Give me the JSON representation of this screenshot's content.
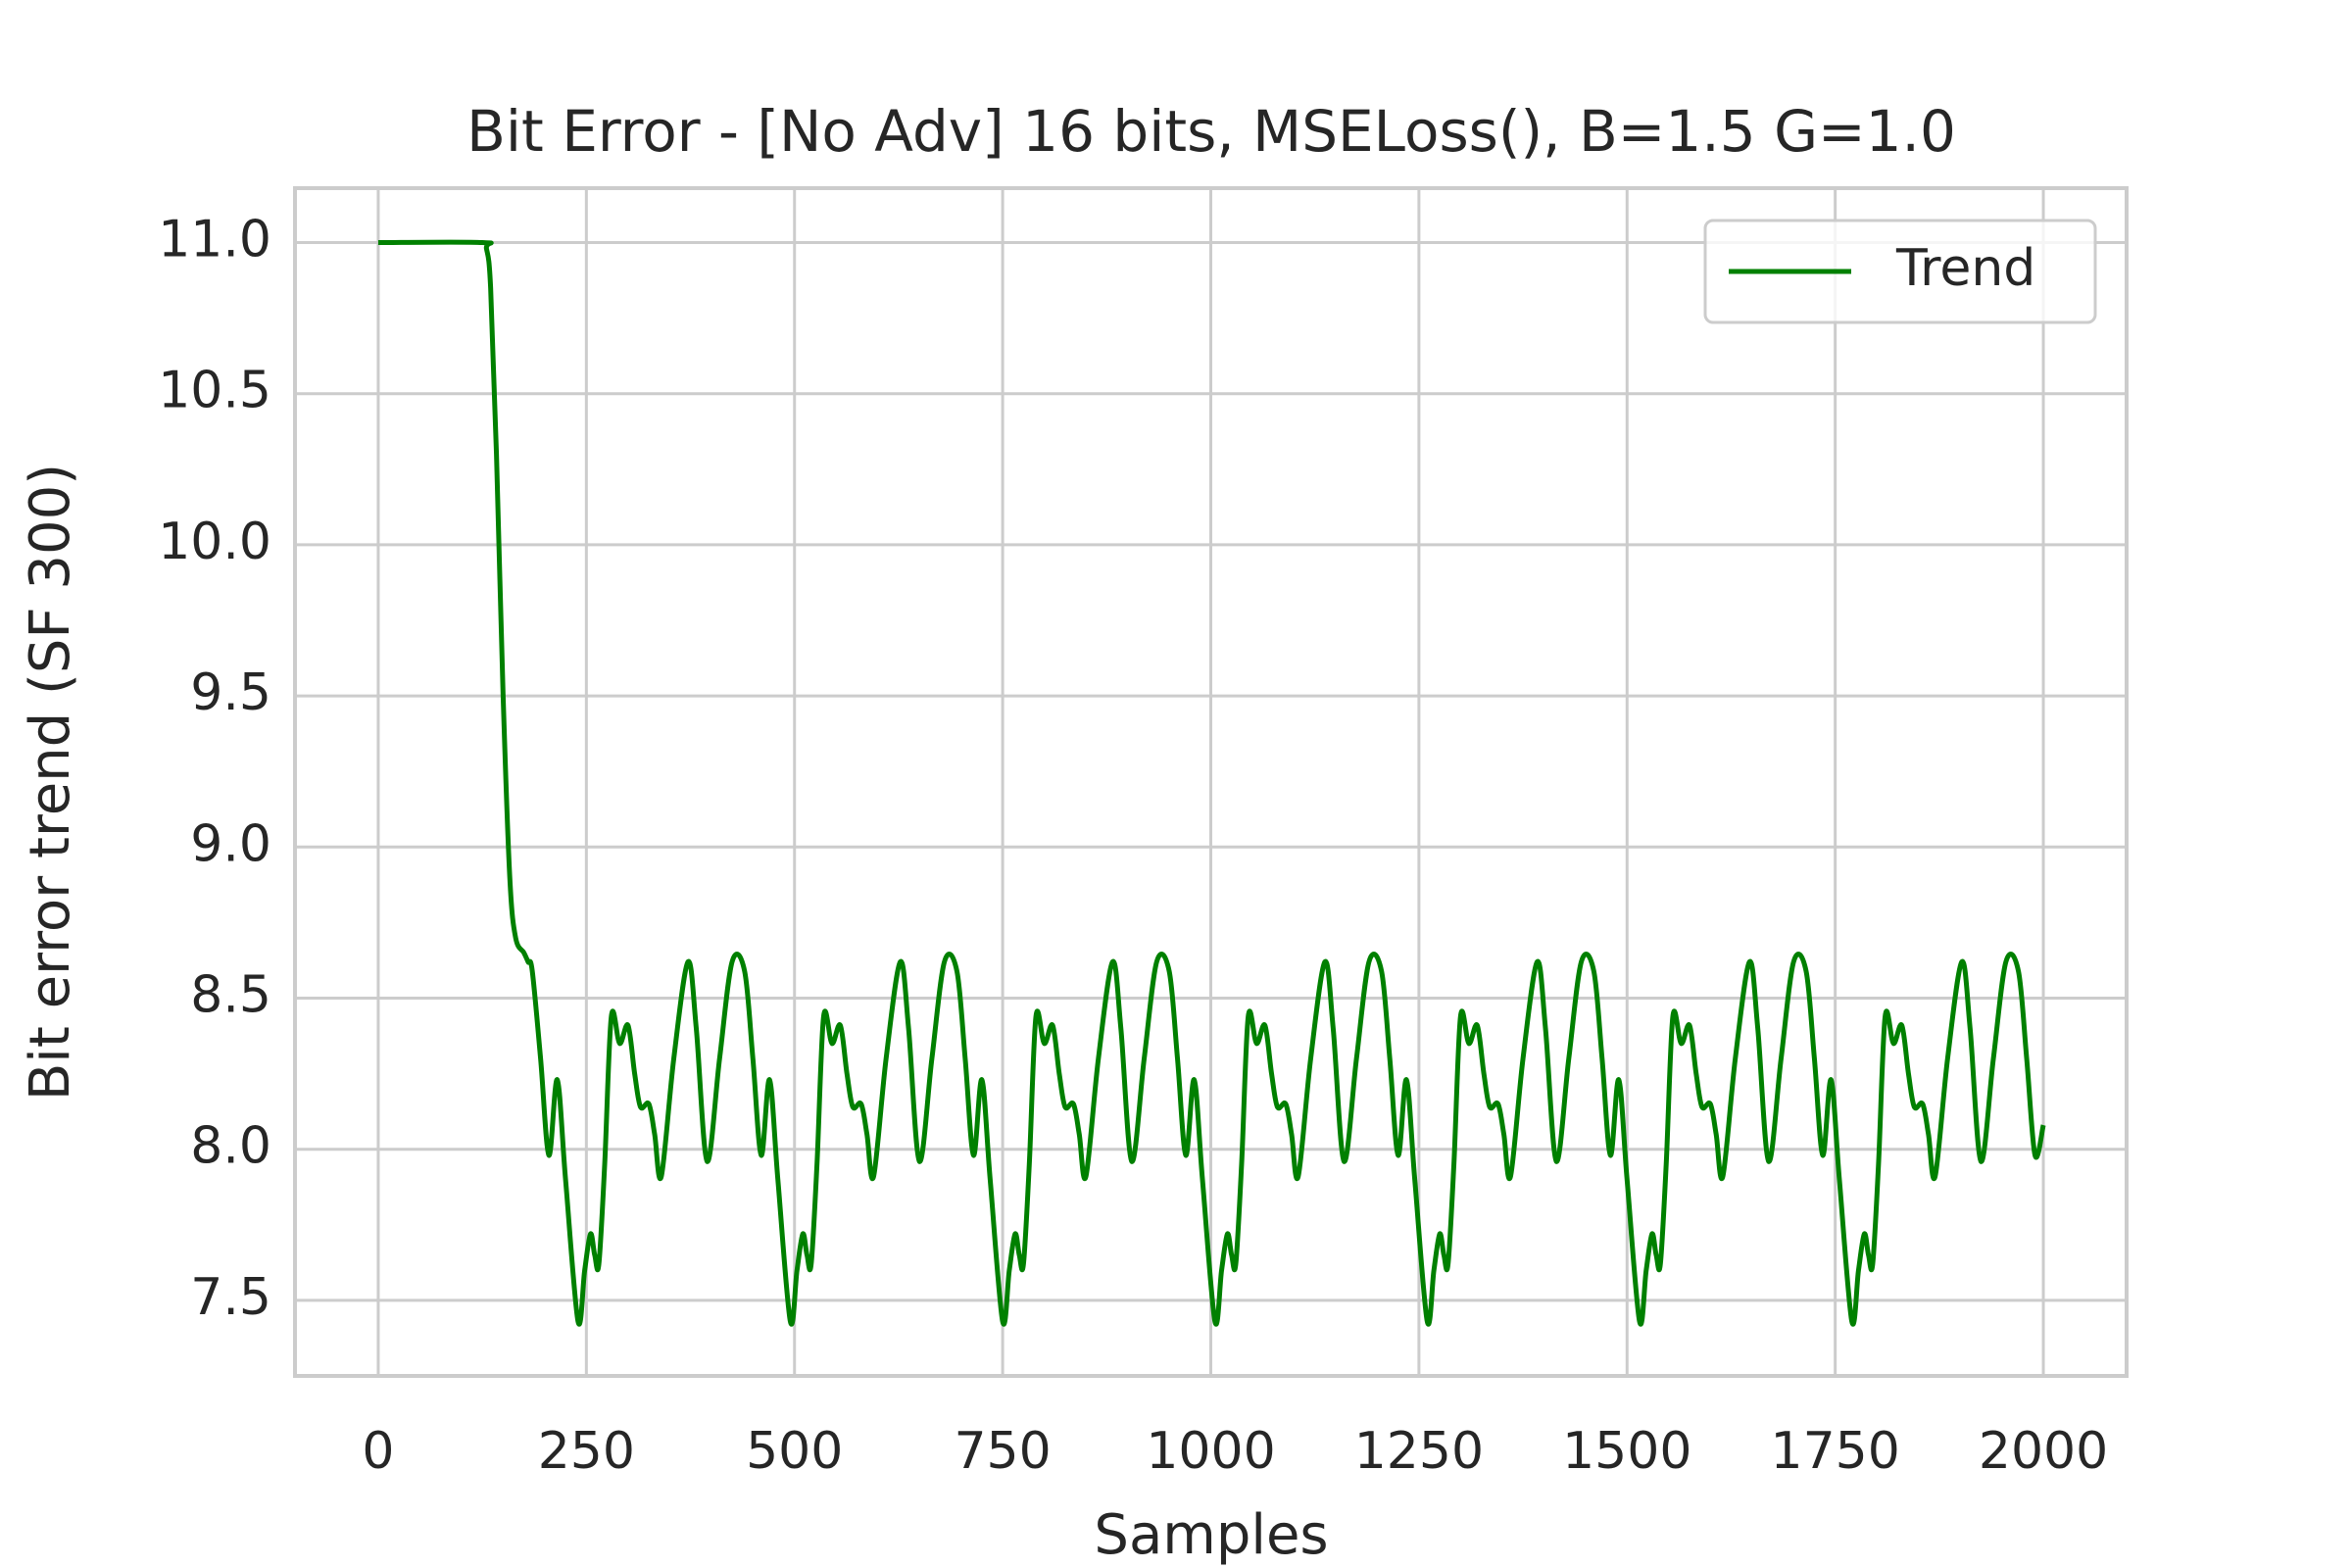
{
  "chart_data": {
    "type": "line",
    "title": "Bit Error - [No Adv] 16 bits, MSELoss(), B=1.5 G=1.0",
    "x_label": "Samples",
    "y_label": "Bit error trend (SF 300)",
    "xlim": [
      -100,
      2100
    ],
    "ylim": [
      7.25,
      11.18
    ],
    "xticks": [
      0,
      250,
      500,
      750,
      1000,
      1250,
      1500,
      1750,
      2000
    ],
    "yticks": [
      {
        "value": 7.5,
        "label": "7.5"
      },
      8.5,
      {
        "value": 8.0,
        "label": "8.0"
      },
      9.5,
      {
        "value": 9.0,
        "label": "9.0"
      },
      10.5,
      {
        "value": 10.0,
        "label": "10.0"
      },
      {
        "value": 11.0,
        "label": "11.0"
      }
    ],
    "grid": true,
    "legend_position": "upper right",
    "x": [
      0,
      125,
      130,
      135,
      142,
      150,
      158,
      165,
      175,
      180,
      185,
      195,
      205,
      215,
      225,
      240,
      248,
      255,
      260,
      265,
      272,
      280,
      290,
      300,
      308,
      315,
      325,
      332,
      340,
      355,
      372,
      382,
      395,
      410,
      425,
      440,
      450,
      460,
      470,
      480,
      495,
      503,
      510,
      515,
      520,
      527,
      535,
      545,
      555,
      563,
      570,
      580,
      587,
      595,
      610,
      627,
      637,
      650,
      665,
      680,
      695,
      705,
      715,
      725,
      735,
      750,
      758,
      765,
      770,
      775,
      782,
      790,
      800,
      810,
      818,
      825,
      835,
      842,
      850,
      865,
      882,
      892,
      905,
      920,
      935,
      950,
      960,
      970,
      980,
      990,
      1005,
      1013,
      1020,
      1025,
      1030,
      1037,
      1045,
      1055,
      1065,
      1073,
      1080,
      1090,
      1097,
      1105,
      1120,
      1137,
      1147,
      1160,
      1175,
      1190,
      1205,
      1215,
      1225,
      1235,
      1245,
      1260,
      1268,
      1275,
      1280,
      1285,
      1292,
      1300,
      1310,
      1320,
      1328,
      1335,
      1345,
      1352,
      1360,
      1375,
      1392,
      1402,
      1415,
      1430,
      1445,
      1460,
      1470,
      1480,
      1490,
      1500,
      1515,
      1523,
      1530,
      1535,
      1540,
      1547,
      1555,
      1565,
      1575,
      1583,
      1590,
      1600,
      1607,
      1615,
      1630,
      1647,
      1657,
      1670,
      1685,
      1700,
      1715,
      1725,
      1735,
      1745,
      1755,
      1770,
      1778,
      1785,
      1790,
      1795,
      1802,
      1810,
      1820,
      1830,
      1838,
      1845,
      1855,
      1862,
      1870,
      1885,
      1902,
      1912,
      1925,
      1940,
      1955,
      1970,
      1980,
      1990,
      2000
    ],
    "series": [
      {
        "name": "Trend",
        "color": "#008000",
        "values": [
          11.0,
          11.0,
          10.98,
          10.85,
          10.3,
          9.5,
          8.9,
          8.7,
          8.65,
          8.62,
          8.59,
          8.3,
          7.98,
          8.23,
          7.9,
          7.43,
          7.6,
          7.72,
          7.65,
          7.62,
          7.95,
          8.44,
          8.35,
          8.41,
          8.25,
          8.14,
          8.15,
          8.05,
          7.91,
          8.3,
          8.62,
          8.4,
          7.96,
          8.3,
          8.62,
          8.59,
          8.3,
          7.98,
          8.23,
          7.9,
          7.43,
          7.6,
          7.72,
          7.65,
          7.62,
          7.95,
          8.44,
          8.35,
          8.41,
          8.25,
          8.14,
          8.15,
          8.05,
          7.91,
          8.3,
          8.62,
          8.4,
          7.96,
          8.3,
          8.62,
          8.59,
          8.3,
          7.98,
          8.23,
          7.9,
          7.43,
          7.6,
          7.72,
          7.65,
          7.62,
          7.95,
          8.44,
          8.35,
          8.41,
          8.25,
          8.14,
          8.15,
          8.05,
          7.91,
          8.3,
          8.62,
          8.4,
          7.96,
          8.3,
          8.62,
          8.59,
          8.3,
          7.98,
          8.23,
          7.9,
          7.43,
          7.6,
          7.72,
          7.65,
          7.62,
          7.95,
          8.44,
          8.35,
          8.41,
          8.25,
          8.14,
          8.15,
          8.05,
          7.91,
          8.3,
          8.62,
          8.4,
          7.96,
          8.3,
          8.62,
          8.59,
          8.3,
          7.98,
          8.23,
          7.9,
          7.43,
          7.6,
          7.72,
          7.65,
          7.62,
          7.95,
          8.44,
          8.35,
          8.41,
          8.25,
          8.14,
          8.15,
          8.05,
          7.91,
          8.3,
          8.62,
          8.4,
          7.96,
          8.3,
          8.62,
          8.59,
          8.3,
          7.98,
          8.23,
          7.9,
          7.43,
          7.6,
          7.72,
          7.65,
          7.62,
          7.95,
          8.44,
          8.35,
          8.41,
          8.25,
          8.14,
          8.15,
          8.05,
          7.91,
          8.3,
          8.62,
          8.4,
          7.96,
          8.3,
          8.62,
          8.59,
          8.3,
          7.98,
          8.23,
          7.9,
          7.43,
          7.6,
          7.72,
          7.65,
          7.62,
          7.95,
          8.44,
          8.35,
          8.41,
          8.25,
          8.14,
          8.15,
          8.05,
          7.91,
          8.3,
          8.62,
          8.4,
          7.96,
          8.3,
          8.62,
          8.59,
          8.3,
          7.98,
          8.08
        ]
      }
    ]
  }
}
